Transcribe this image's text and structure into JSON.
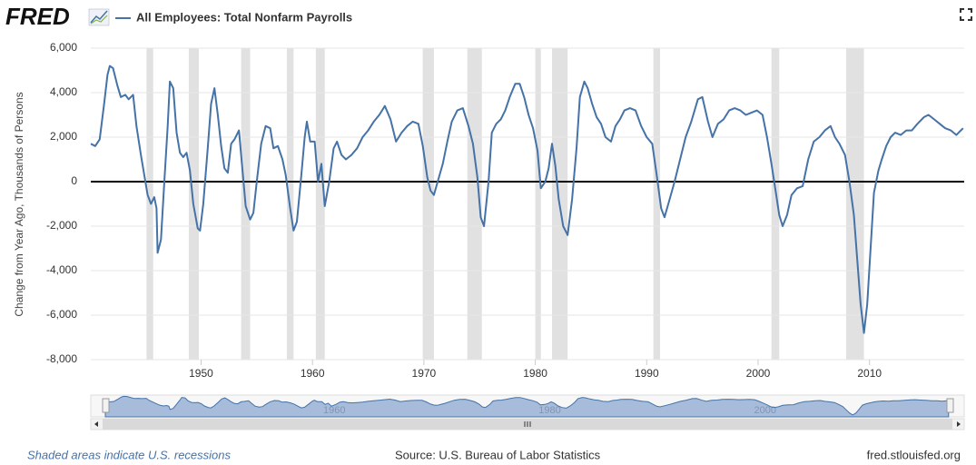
{
  "chart_data": {
    "type": "line",
    "brand": "FRED",
    "ylabel": "Change from Year Ago, Thousands of Persons",
    "source": "Source: U.S. Bureau of Labor Statistics",
    "site": "fred.stlouisfed.org",
    "note": "Shaded areas indicate U.S. recessions",
    "xlim": [
      1940.1,
      2018.5
    ],
    "xticks": [
      1950,
      1960,
      1970,
      1980,
      1990,
      2000,
      2010
    ],
    "navigator_ticks": [
      1960,
      1980,
      2000
    ],
    "ylim": [
      -8000,
      6000
    ],
    "yticks": [
      {
        "value": -8000,
        "label": "-8,000"
      },
      {
        "value": -6000,
        "label": "-6,000"
      },
      {
        "value": -4000,
        "label": "-4,000"
      },
      {
        "value": -2000,
        "label": "-2,000"
      },
      0,
      {
        "value": 2000,
        "label": "2,000"
      },
      {
        "value": 4000,
        "label": "4,000"
      },
      {
        "value": 6000,
        "label": "6,000"
      }
    ],
    "grid": true,
    "recession_color": "#e1e1e1",
    "recessions": [
      [
        1945.1,
        1945.7
      ],
      [
        1948.9,
        1949.8
      ],
      [
        1953.6,
        1954.4
      ],
      [
        1957.7,
        1958.3
      ],
      [
        1960.3,
        1961.1
      ],
      [
        1969.9,
        1970.9
      ],
      [
        1973.9,
        1975.2
      ],
      [
        1980.0,
        1980.5
      ],
      [
        1981.5,
        1982.9
      ],
      [
        1990.6,
        1991.2
      ],
      [
        2001.2,
        2001.9
      ],
      [
        2007.9,
        2009.5
      ]
    ],
    "x": [
      1940.1,
      1940.5,
      1940.9,
      1941.3,
      1941.6,
      1941.8,
      1942.1,
      1942.5,
      1942.8,
      1943.2,
      1943.5,
      1943.9,
      1944.2,
      1944.6,
      1944.9,
      1945.2,
      1945.5,
      1945.8,
      1946.0,
      1946.1,
      1946.4,
      1946.7,
      1947.0,
      1947.2,
      1947.5,
      1947.8,
      1948.1,
      1948.4,
      1948.7,
      1949.0,
      1949.3,
      1949.7,
      1949.9,
      1950.2,
      1950.6,
      1950.9,
      1951.2,
      1951.5,
      1951.8,
      1952.1,
      1952.4,
      1952.7,
      1953.0,
      1953.4,
      1953.7,
      1954.0,
      1954.4,
      1954.7,
      1955.0,
      1955.4,
      1955.8,
      1956.2,
      1956.5,
      1956.9,
      1957.3,
      1957.6,
      1958.0,
      1958.3,
      1958.6,
      1959.0,
      1959.3,
      1959.5,
      1959.8,
      1960.2,
      1960.5,
      1960.8,
      1961.1,
      1961.5,
      1961.9,
      1962.2,
      1962.6,
      1963.0,
      1963.5,
      1964.0,
      1964.5,
      1965.0,
      1965.5,
      1966.0,
      1966.5,
      1967.0,
      1967.5,
      1968.0,
      1968.5,
      1969.0,
      1969.5,
      1969.9,
      1970.3,
      1970.6,
      1970.9,
      1971.3,
      1971.7,
      1972.1,
      1972.5,
      1973.0,
      1973.5,
      1974.0,
      1974.4,
      1974.8,
      1975.1,
      1975.4,
      1975.8,
      1976.1,
      1976.5,
      1976.9,
      1977.3,
      1977.7,
      1978.2,
      1978.6,
      1979.0,
      1979.4,
      1979.8,
      1980.2,
      1980.5,
      1980.9,
      1981.2,
      1981.5,
      1981.8,
      1982.1,
      1982.5,
      1982.9,
      1983.3,
      1983.7,
      1984.0,
      1984.4,
      1984.7,
      1985.1,
      1985.5,
      1985.9,
      1986.3,
      1986.8,
      1987.2,
      1987.6,
      1988.0,
      1988.5,
      1989.0,
      1989.5,
      1990.0,
      1990.5,
      1990.9,
      1991.3,
      1991.6,
      1992.0,
      1992.5,
      1993.0,
      1993.5,
      1994.0,
      1994.6,
      1995.0,
      1995.5,
      1995.9,
      1996.4,
      1996.9,
      1997.4,
      1997.9,
      1998.4,
      1998.9,
      1999.4,
      1999.9,
      2000.4,
      2000.8,
      2001.2,
      2001.6,
      2001.9,
      2002.2,
      2002.6,
      2003.0,
      2003.5,
      2004.0,
      2004.5,
      2005.0,
      2005.5,
      2006.0,
      2006.5,
      2006.9,
      2007.3,
      2007.8,
      2008.2,
      2008.6,
      2008.9,
      2009.2,
      2009.5,
      2009.8,
      2010.1,
      2010.4,
      2010.8,
      2011.1,
      2011.5,
      2011.9,
      2012.3,
      2012.8,
      2013.3,
      2013.8,
      2014.3,
      2014.9,
      2015.3,
      2015.8,
      2016.3,
      2016.8,
      2017.3,
      2017.8,
      2018.2,
      2018.4
    ],
    "series": [
      {
        "name": "All Employees: Total Nonfarm Payrolls",
        "color": "#4572a7",
        "values": [
          1700,
          1600,
          1900,
          3500,
          4800,
          5200,
          5100,
          4300,
          3800,
          3900,
          3700,
          3900,
          2500,
          1200,
          300,
          -600,
          -1000,
          -700,
          -1200,
          -3200,
          -2600,
          0,
          2500,
          4500,
          4200,
          2200,
          1300,
          1100,
          1300,
          500,
          -1000,
          -2100,
          -2200,
          -1000,
          1500,
          3500,
          4200,
          3000,
          1600,
          600,
          400,
          1700,
          1900,
          2300,
          600,
          -1100,
          -1700,
          -1400,
          0,
          1700,
          2500,
          2400,
          1500,
          1600,
          1000,
          300,
          -1200,
          -2200,
          -1800,
          300,
          2000,
          2700,
          1800,
          1800,
          0,
          800,
          -1100,
          0,
          1500,
          1800,
          1200,
          1000,
          1200,
          1500,
          2000,
          2300,
          2700,
          3000,
          3400,
          2800,
          1800,
          2200,
          2500,
          2700,
          2600,
          1600,
          200,
          -400,
          -600,
          100,
          800,
          1800,
          2700,
          3200,
          3300,
          2500,
          1700,
          200,
          -1600,
          -2000,
          0,
          2200,
          2600,
          2800,
          3200,
          3800,
          4400,
          4400,
          3800,
          3000,
          2400,
          1400,
          -300,
          0,
          600,
          1700,
          700,
          -800,
          -2000,
          -2400,
          -800,
          1500,
          3800,
          4500,
          4200,
          3500,
          2900,
          2600,
          2000,
          1800,
          2500,
          2800,
          3200,
          3300,
          3200,
          2500,
          2000,
          1700,
          300,
          -1200,
          -1600,
          -900,
          0,
          1000,
          2000,
          2700,
          3700,
          3800,
          2700,
          2000,
          2600,
          2800,
          3200,
          3300,
          3200,
          3000,
          3100,
          3200,
          3000,
          2000,
          800,
          -500,
          -1500,
          -2000,
          -1500,
          -600,
          -300,
          -200,
          1000,
          1800,
          2000,
          2300,
          2500,
          2000,
          1700,
          1200,
          0,
          -1500,
          -3500,
          -5500,
          -6800,
          -5500,
          -3000,
          -500,
          500,
          1000,
          1600,
          2000,
          2200,
          2100,
          2300,
          2300,
          2600,
          2900,
          3000,
          2800,
          2600,
          2400,
          2300,
          2100,
          2300,
          2400
        ]
      }
    ]
  }
}
